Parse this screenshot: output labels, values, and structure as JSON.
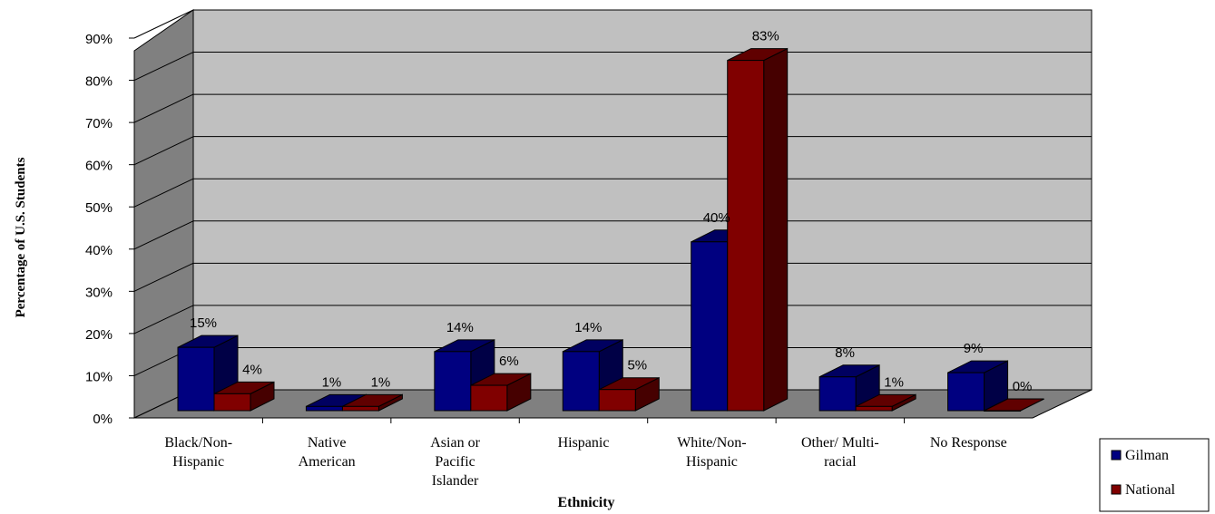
{
  "chart_data": {
    "type": "bar",
    "title": "",
    "xlabel": "Ethnicity",
    "ylabel": "Percentage  of U.S. Students",
    "ylim": [
      0,
      90
    ],
    "yticks": [
      "0%",
      "10%",
      "20%",
      "30%",
      "40%",
      "50%",
      "60%",
      "70%",
      "80%",
      "90%"
    ],
    "categories": [
      [
        "Black/Non-",
        "Hispanic"
      ],
      [
        "Native",
        "American"
      ],
      [
        "Asian or",
        "Pacific",
        "Islander"
      ],
      [
        "Hispanic"
      ],
      [
        "White/Non-",
        "Hispanic"
      ],
      [
        "Other/ Multi-",
        "racial"
      ],
      [
        "No Response"
      ]
    ],
    "series": [
      {
        "name": "Gilman",
        "values": [
          15,
          1,
          14,
          14,
          40,
          8,
          9
        ],
        "labels": [
          "15%",
          "1%",
          "14%",
          "14%",
          "40%",
          "8%",
          "9%"
        ],
        "color": "#000080"
      },
      {
        "name": "National",
        "values": [
          4,
          1,
          6,
          5,
          83,
          1,
          0
        ],
        "labels": [
          "4%",
          "1%",
          "6%",
          "5%",
          "83%",
          "1%",
          "0%"
        ],
        "color": "#800000"
      }
    ],
    "grid": true,
    "legend": "bottom-right",
    "style": "3d-clustered-column",
    "wall_color": "#c0c0c0"
  }
}
